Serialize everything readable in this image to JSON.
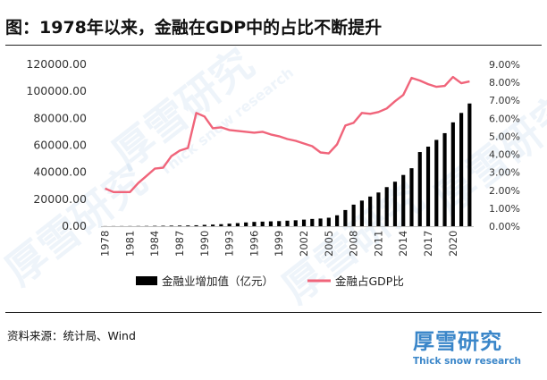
{
  "page": {
    "title": "图：1978年以来，金融在GDP中的占比不断提升",
    "source": "资料来源：统计局、Wind",
    "logo_cn": "厚雪研究",
    "logo_en": "Thick snow research",
    "watermark_cn": "厚雪研究",
    "watermark_en": "Thick snow research"
  },
  "chart_data": {
    "type": "bar+line",
    "categories": [
      "1978",
      "1979",
      "1980",
      "1981",
      "1982",
      "1983",
      "1984",
      "1985",
      "1986",
      "1987",
      "1988",
      "1989",
      "1990",
      "1991",
      "1992",
      "1993",
      "1994",
      "1995",
      "1996",
      "1997",
      "1998",
      "1999",
      "2000",
      "2001",
      "2002",
      "2003",
      "2004",
      "2005",
      "2006",
      "2007",
      "2008",
      "2009",
      "2010",
      "2011",
      "2012",
      "2013",
      "2014",
      "2015",
      "2016",
      "2017",
      "2018",
      "2019",
      "2020",
      "2021",
      "2022"
    ],
    "x_tick_labels": [
      "1978",
      "1981",
      "1984",
      "1987",
      "1990",
      "1993",
      "1996",
      "1999",
      "2002",
      "2005",
      "2008",
      "2011",
      "2014",
      "2017",
      "2020"
    ],
    "series": [
      {
        "name": "金融业增加值（亿元）",
        "type": "bar",
        "axis": "left",
        "color": "#000000",
        "values": [
          76,
          92,
          106,
          118,
          150,
          185,
          260,
          330,
          420,
          480,
          560,
          700,
          1000,
          1200,
          1500,
          1900,
          2300,
          2800,
          3200,
          3400,
          3600,
          3800,
          4100,
          4400,
          4900,
          5400,
          5700,
          6300,
          8100,
          12000,
          16000,
          19000,
          22000,
          25000,
          29000,
          33000,
          38000,
          43000,
          55000,
          59000,
          64000,
          69000,
          77000,
          84000,
          91000
        ]
      },
      {
        "name": "金融占GDP比",
        "type": "line",
        "axis": "right",
        "color": "#f0647a",
        "values": [
          2.1,
          1.9,
          1.9,
          1.9,
          2.4,
          2.8,
          3.2,
          3.25,
          3.9,
          4.2,
          4.35,
          6.3,
          6.1,
          5.45,
          5.5,
          5.35,
          5.3,
          5.25,
          5.2,
          5.25,
          5.1,
          5.0,
          4.85,
          4.75,
          4.6,
          4.45,
          4.1,
          4.05,
          4.55,
          5.6,
          5.75,
          6.3,
          6.25,
          6.35,
          6.55,
          6.95,
          7.3,
          8.25,
          8.1,
          7.9,
          7.75,
          7.8,
          8.3,
          7.95,
          8.05
        ]
      }
    ],
    "y_left": {
      "min": 0,
      "max": 120000,
      "ticks": [
        "0.00",
        "20000.00",
        "40000.00",
        "60000.00",
        "80000.00",
        "100000.00",
        "120000.00"
      ]
    },
    "y_right": {
      "min": 0,
      "max": 9,
      "ticks": [
        "0.00%",
        "1.00%",
        "2.00%",
        "3.00%",
        "4.00%",
        "5.00%",
        "6.00%",
        "7.00%",
        "8.00%",
        "9.00%"
      ]
    },
    "grid": false,
    "legend_position": "bottom"
  }
}
